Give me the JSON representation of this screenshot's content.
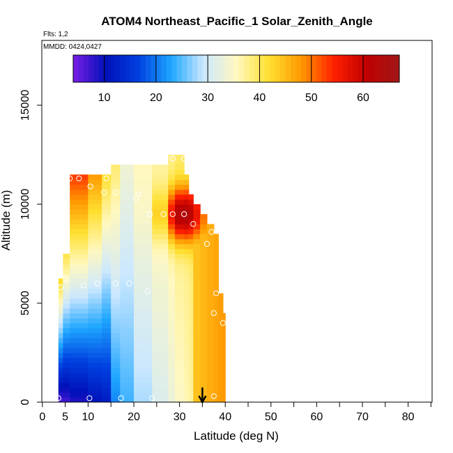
{
  "chart_data": {
    "type": "heatmap",
    "title": "ATOM4 Northeast_Pacific_1 Solar_Zenith_Angle",
    "flights_label": "Flts: 1,2",
    "dates_label": "MMDD: 0424,0427",
    "xlabel": "Latitude (deg N)",
    "ylabel": "Altitude (m)",
    "xlim": [
      0,
      85
    ],
    "ylim": [
      0,
      17500
    ],
    "x_ticks": [
      0,
      5,
      10,
      20,
      30,
      40,
      50,
      60,
      70,
      80
    ],
    "x_minor_ticks": [
      15,
      25,
      35,
      45,
      55,
      65,
      75,
      85
    ],
    "y_ticks": [
      0,
      5000,
      10000,
      15000
    ],
    "colorbar": {
      "range": [
        4,
        67
      ],
      "ticks": [
        10,
        20,
        30,
        40,
        50,
        60
      ],
      "colors": [
        "#7a1ee6",
        "#0010b8",
        "#0040e0",
        "#1ea6ff",
        "#cce8ff",
        "#fff8c0",
        "#ffe030",
        "#ff9800",
        "#ff2000",
        "#c00000",
        "#a01818"
      ]
    },
    "arrow_marker": {
      "x": 35,
      "label": ""
    },
    "profile_columns": [
      {
        "x0": 3.5,
        "x1": 4.5,
        "ztop": 6200,
        "lat_axis": 4,
        "grad": 4.5
      },
      {
        "x0": 4.5,
        "x1": 6.0,
        "ztop": 7500,
        "lat_axis": 5.5,
        "grad": 3.5
      },
      {
        "x0": 6.0,
        "x1": 10.0,
        "ztop": 11500,
        "lat_axis": 8.5,
        "grad": 3.0
      },
      {
        "x0": 10.0,
        "x1": 13.0,
        "ztop": 11500,
        "lat_axis": 11.5,
        "grad": 2.5
      },
      {
        "x0": 13.0,
        "x1": 15.0,
        "ztop": 11500,
        "lat_axis": 14,
        "grad": 2.0
      },
      {
        "x0": 15.0,
        "x1": 17.0,
        "ztop": 12000,
        "lat_axis": 17,
        "grad": 1.5
      },
      {
        "x0": 17.0,
        "x1": 20.0,
        "ztop": 12000,
        "lat_axis": 20,
        "grad": 1.0
      },
      {
        "x0": 20.0,
        "x1": 24.0,
        "ztop": 12000,
        "lat_axis": 24,
        "grad": 0.8
      },
      {
        "x0": 24.0,
        "x1": 27.5,
        "ztop": 12000,
        "lat_axis": 27,
        "grad": 0.6
      },
      {
        "x0": 27.5,
        "x1": 29.0,
        "ztop": 12500,
        "lat_axis": 29,
        "grad": 0.5
      },
      {
        "x0": 29.0,
        "x1": 31.0,
        "ztop": 12500,
        "lat_axis": 31,
        "grad": 0.4
      },
      {
        "x0": 31.0,
        "x1": 32.0,
        "ztop": 11500,
        "lat_axis": 32,
        "grad": 0.3
      },
      {
        "x0": 32.0,
        "x1": 33.0,
        "ztop": 10500,
        "lat_axis": 33,
        "grad": 0.3
      },
      {
        "x0": 33.0,
        "x1": 34.5,
        "ztop": 10000,
        "lat_axis": 34,
        "grad": 0.2
      },
      {
        "x0": 34.5,
        "x1": 36.0,
        "ztop": 9500,
        "lat_axis": 35,
        "grad": 0.2
      },
      {
        "x0": 36.0,
        "x1": 37.5,
        "ztop": 9000,
        "lat_axis": 36,
        "grad": 0.1
      },
      {
        "x0": 37.5,
        "x1": 38.5,
        "ztop": 8500,
        "lat_axis": 37,
        "grad": 0.1
      },
      {
        "x0": 38.5,
        "x1": 39.5,
        "ztop": 5500,
        "lat_axis": 38,
        "grad": 0.1
      },
      {
        "x0": 39.5,
        "x1": 40.0,
        "ztop": 4500,
        "lat_axis": 38,
        "grad": 0.1
      }
    ],
    "hotspot": {
      "x": 31,
      "y": 9500,
      "peak": 64
    },
    "points": [
      {
        "x": 3.5,
        "y": 200
      },
      {
        "x": 10.3,
        "y": 200
      },
      {
        "x": 17.2,
        "y": 200
      },
      {
        "x": 24.0,
        "y": 200
      },
      {
        "x": 37.5,
        "y": 300
      },
      {
        "x": 4.0,
        "y": 5800
      },
      {
        "x": 5.2,
        "y": 6200
      },
      {
        "x": 9.0,
        "y": 5900
      },
      {
        "x": 12.0,
        "y": 6000
      },
      {
        "x": 16.0,
        "y": 6000
      },
      {
        "x": 19.0,
        "y": 6000
      },
      {
        "x": 23.0,
        "y": 5600
      },
      {
        "x": 38.0,
        "y": 5500
      },
      {
        "x": 37.5,
        "y": 4500
      },
      {
        "x": 39.5,
        "y": 4000
      },
      {
        "x": 6.0,
        "y": 11300
      },
      {
        "x": 8.0,
        "y": 11300
      },
      {
        "x": 14.0,
        "y": 11300
      },
      {
        "x": 10.5,
        "y": 10900
      },
      {
        "x": 13.5,
        "y": 10600
      },
      {
        "x": 16.0,
        "y": 10600
      },
      {
        "x": 21.0,
        "y": 10500
      },
      {
        "x": 20.5,
        "y": 10300
      },
      {
        "x": 23.5,
        "y": 9500
      },
      {
        "x": 26.5,
        "y": 9500
      },
      {
        "x": 28.5,
        "y": 9500
      },
      {
        "x": 31.0,
        "y": 9500
      },
      {
        "x": 33.0,
        "y": 9000
      },
      {
        "x": 37.0,
        "y": 8600
      },
      {
        "x": 36.0,
        "y": 8000
      },
      {
        "x": 28.5,
        "y": 12300
      },
      {
        "x": 31.0,
        "y": 12300
      }
    ]
  }
}
